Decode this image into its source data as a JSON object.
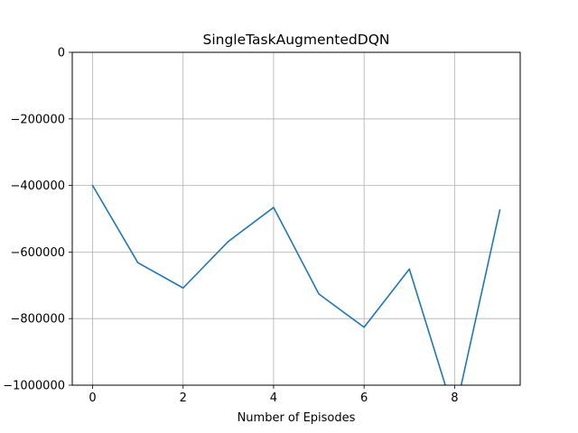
{
  "chart_data": {
    "type": "line",
    "title": "SingleTaskAugmentedDQN",
    "xlabel": "Number of Episodes",
    "ylabel": "",
    "xlim": [
      -0.45,
      9.45
    ],
    "ylim": [
      -1000000,
      0
    ],
    "grid": true,
    "x_ticks": [
      0,
      2,
      4,
      6,
      8
    ],
    "x_tick_labels": [
      "0",
      "2",
      "4",
      "6",
      "8"
    ],
    "y_ticks": [
      0,
      -200000,
      -400000,
      -600000,
      -800000,
      -1000000
    ],
    "y_tick_labels": [
      "0",
      "−200000",
      "−400000",
      "−600000",
      "−800000",
      "−1000000"
    ],
    "series": [
      {
        "color": "#1f77b4",
        "x": [
          0,
          1,
          2,
          3,
          4,
          5,
          6,
          7,
          8,
          9
        ],
        "y": [
          -400000,
          -632000,
          -708000,
          -568000,
          -466000,
          -726000,
          -826000,
          -651000,
          -1090000,
          -474000
        ]
      }
    ]
  }
}
